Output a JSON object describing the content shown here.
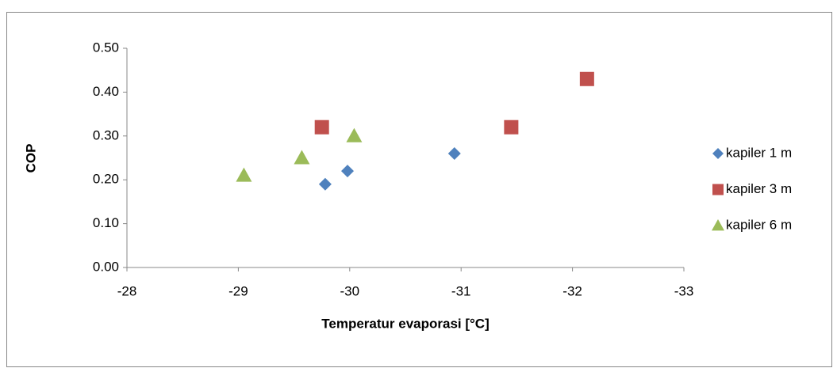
{
  "chart_data": {
    "type": "scatter",
    "x_label": "Temperatur evaporasi [°C]",
    "y_label": "COP",
    "xlim": [
      -28,
      -33
    ],
    "xticks": [
      -28,
      -29,
      -30,
      -31,
      -32,
      -33
    ],
    "ylim": [
      0,
      0.5
    ],
    "yticks": [
      {
        "value": 0,
        "label": "0.00"
      },
      {
        "value": 0.1,
        "label": "0.10"
      },
      {
        "value": 0.2,
        "label": "0.20"
      },
      {
        "value": 0.3,
        "label": "0.30"
      },
      {
        "value": 0.4,
        "label": "0.40"
      },
      {
        "value": 0.5,
        "label": "0.50"
      }
    ],
    "legend": "right",
    "series": [
      {
        "name": "kapiler 1 m",
        "color": "#4f81bd",
        "marker": "diamond",
        "x": [
          -29.78,
          -29.98,
          -30.94
        ],
        "values": [
          0.19,
          0.22,
          0.26
        ]
      },
      {
        "name": "kapiler 3 m",
        "color": "#c0504d",
        "marker": "square",
        "x": [
          -29.75,
          -31.45,
          -32.13
        ],
        "values": [
          0.32,
          0.32,
          0.43
        ]
      },
      {
        "name": "kapiler 6 m",
        "color": "#9bbb59",
        "marker": "triangle",
        "x": [
          -29.05,
          -29.57,
          -30.04
        ],
        "values": [
          0.21,
          0.25,
          0.3
        ]
      }
    ]
  }
}
